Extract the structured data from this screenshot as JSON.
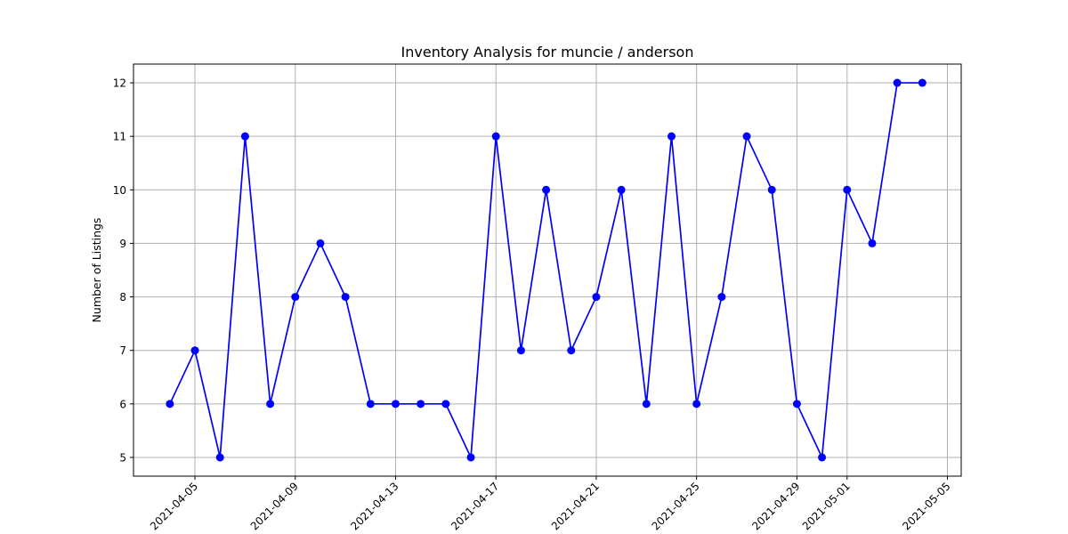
{
  "chart_data": {
    "type": "line",
    "title": "Inventory Analysis for muncie / anderson",
    "xlabel": "",
    "ylabel": "Number of Listings",
    "x": [
      "2021-04-04",
      "2021-04-05",
      "2021-04-06",
      "2021-04-07",
      "2021-04-08",
      "2021-04-09",
      "2021-04-10",
      "2021-04-11",
      "2021-04-12",
      "2021-04-13",
      "2021-04-14",
      "2021-04-15",
      "2021-04-16",
      "2021-04-17",
      "2021-04-18",
      "2021-04-19",
      "2021-04-20",
      "2021-04-21",
      "2021-04-22",
      "2021-04-23",
      "2021-04-24",
      "2021-04-25",
      "2021-04-26",
      "2021-04-27",
      "2021-04-28",
      "2021-04-29",
      "2021-04-30",
      "2021-05-01",
      "2021-05-02",
      "2021-05-03",
      "2021-05-04"
    ],
    "series": [
      {
        "values": [
          6,
          7,
          5,
          11,
          6,
          8,
          9,
          8,
          6,
          6,
          6,
          6,
          5,
          11,
          7,
          10,
          7,
          8,
          10,
          6,
          11,
          6,
          8,
          11,
          10,
          6,
          5,
          10,
          9,
          12,
          12
        ],
        "color": "#0000ff"
      }
    ],
    "xticks": [
      "2021-04-05",
      "2021-04-09",
      "2021-04-13",
      "2021-04-17",
      "2021-04-21",
      "2021-04-25",
      "2021-04-29",
      "2021-05-01",
      "2021-05-05"
    ],
    "yticks": [
      5,
      6,
      7,
      8,
      9,
      10,
      11,
      12
    ],
    "xlim": [
      "2021-04-02",
      "2021-05-05"
    ],
    "ylim": [
      4.65,
      12.35
    ],
    "grid": true,
    "marker": "circle"
  }
}
